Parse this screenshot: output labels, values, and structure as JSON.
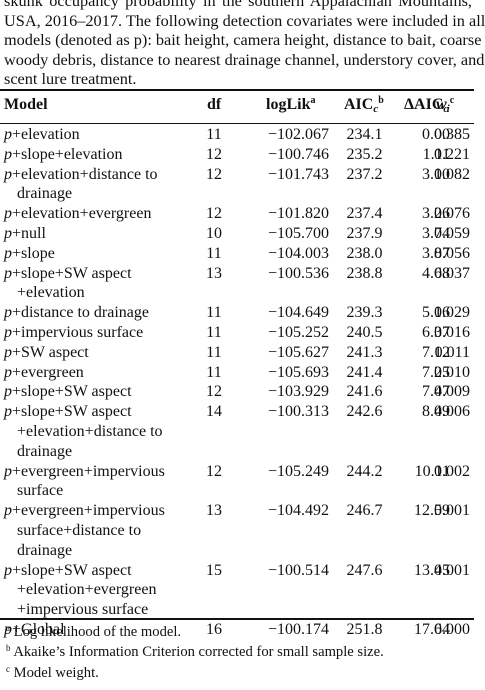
{
  "caption": {
    "lines": [
      "skunk occupancy probability in the southern Appalachian Mountains,",
      "USA, 2016–2017. The following detection covariates were included in all",
      "models (denoted as p): bait height, camera height, distance to bait, coarse",
      "woody debris, distance to nearest drainage channel, understory cover, and",
      "scent lure treatment."
    ]
  },
  "header": {
    "model": "Model",
    "df": "df",
    "loglik": "logLik",
    "loglik_sup": "a",
    "aic": "AIC",
    "aic_sub": "c",
    "aic_sup": "b",
    "daic": "ΔAIC",
    "daic_sub": "c",
    "w": "w",
    "w_sub": "i",
    "w_sup": "c"
  },
  "rows": [
    {
      "p": "p",
      "model_lines": [
        "+elevation"
      ],
      "df": "11",
      "loglik": "−102.067",
      "aic": "234.1",
      "daic": "0.00",
      "w": "0.385"
    },
    {
      "p": "p",
      "model_lines": [
        "+slope+elevation"
      ],
      "df": "12",
      "loglik": "−100.746",
      "aic": "235.2",
      "daic": "1.11",
      "w": "0.221"
    },
    {
      "p": "p",
      "model_lines": [
        "+elevation+distance to",
        "drainage"
      ],
      "df": "12",
      "loglik": "−101.743",
      "aic": "237.2",
      "daic": "3.10",
      "w": "0.082"
    },
    {
      "p": "p",
      "model_lines": [
        "+elevation+evergreen"
      ],
      "df": "12",
      "loglik": "−101.820",
      "aic": "237.4",
      "daic": "3.26",
      "w": "0.076"
    },
    {
      "p": "p",
      "model_lines": [
        "+null"
      ],
      "df": "10",
      "loglik": "−105.700",
      "aic": "237.9",
      "daic": "3.74",
      "w": "0.059"
    },
    {
      "p": "p",
      "model_lines": [
        "+slope"
      ],
      "df": "11",
      "loglik": "−104.003",
      "aic": "238.0",
      "daic": "3.87",
      "w": "0.056"
    },
    {
      "p": "p",
      "model_lines": [
        "+slope+SW aspect",
        "+elevation"
      ],
      "df": "13",
      "loglik": "−100.536",
      "aic": "238.8",
      "daic": "4.68",
      "w": "0.037"
    },
    {
      "p": "p",
      "model_lines": [
        "+distance to drainage"
      ],
      "df": "11",
      "loglik": "−104.649",
      "aic": "239.3",
      "daic": "5.16",
      "w": "0.029"
    },
    {
      "p": "p",
      "model_lines": [
        "+impervious surface"
      ],
      "df": "11",
      "loglik": "−105.252",
      "aic": "240.5",
      "daic": "6.37",
      "w": "0.016"
    },
    {
      "p": "p",
      "model_lines": [
        "+SW aspect"
      ],
      "df": "11",
      "loglik": "−105.627",
      "aic": "241.3",
      "daic": "7.12",
      "w": "0.011"
    },
    {
      "p": "p",
      "model_lines": [
        "+evergreen"
      ],
      "df": "11",
      "loglik": "−105.693",
      "aic": "241.4",
      "daic": "7.25",
      "w": "0.010"
    },
    {
      "p": "p",
      "model_lines": [
        "+slope+SW aspect"
      ],
      "df": "12",
      "loglik": "−103.929",
      "aic": "241.6",
      "daic": "7.47",
      "w": "0.009"
    },
    {
      "p": "p",
      "model_lines": [
        "+slope+SW aspect",
        "+elevation+distance to",
        "drainage"
      ],
      "df": "14",
      "loglik": "−100.313",
      "aic": "242.6",
      "daic": "8.49",
      "w": "0.006"
    },
    {
      "p": "p",
      "model_lines": [
        "+evergreen+impervious",
        "surface"
      ],
      "df": "12",
      "loglik": "−105.249",
      "aic": "244.2",
      "daic": "10.11",
      "w": "0.002"
    },
    {
      "p": "p",
      "model_lines": [
        "+evergreen+impervious",
        "surface+distance to",
        "drainage"
      ],
      "df": "13",
      "loglik": "−104.492",
      "aic": "246.7",
      "daic": "12.59",
      "w": "0.001"
    },
    {
      "p": "p",
      "model_lines": [
        "+slope+SW aspect",
        "+elevation+evergreen",
        "+impervious surface"
      ],
      "df": "15",
      "loglik": "−100.514",
      "aic": "247.6",
      "daic": "13.45",
      "w": "0.001"
    },
    {
      "p": "p",
      "model_lines": [
        "+Global"
      ],
      "df": "16",
      "loglik": "−100.174",
      "aic": "251.8",
      "daic": "17.64",
      "w": "0.000"
    }
  ],
  "footnotes": [
    {
      "mark": "a",
      "text": " Log likelihood of the model."
    },
    {
      "mark": "b",
      "text": " Akaike’s Information Criterion corrected for small sample size."
    },
    {
      "mark": "c",
      "text": " Model weight."
    }
  ]
}
